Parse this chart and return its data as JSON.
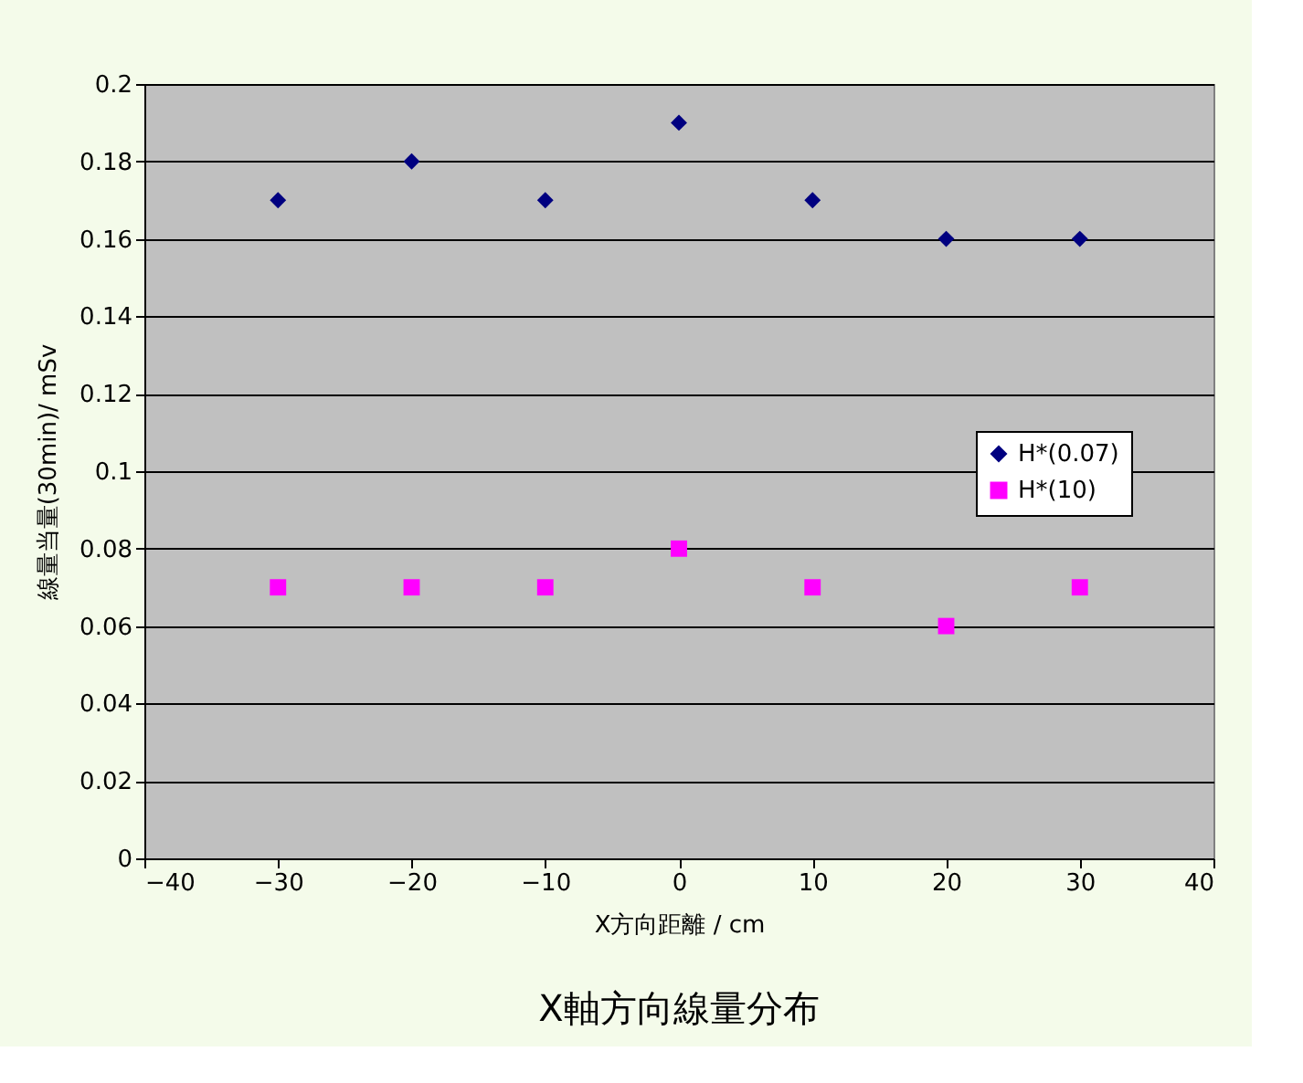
{
  "chart_data": {
    "type": "scatter",
    "title": "X軸方向線量分布",
    "xlabel": "X方向距離 / cm",
    "ylabel": "線量当量(30min)/ mSv",
    "x": [
      -30,
      -20,
      -10,
      0,
      10,
      20,
      30
    ],
    "series": [
      {
        "name": "H*(0.07)",
        "color": "#000080",
        "marker": "diamond",
        "values": [
          0.17,
          0.18,
          0.17,
          0.19,
          0.17,
          0.16,
          0.16
        ]
      },
      {
        "name": "H*(10)",
        "color": "#ff00ff",
        "marker": "square",
        "values": [
          0.07,
          0.07,
          0.07,
          0.08,
          0.07,
          0.06,
          0.07
        ]
      }
    ],
    "xlim": [
      -40,
      40
    ],
    "xticks": [
      -40,
      -30,
      -20,
      -10,
      0,
      10,
      20,
      30,
      40
    ],
    "ylim": [
      0,
      0.2
    ],
    "yticks": [
      0,
      0.02,
      0.04,
      0.06,
      0.08,
      0.1,
      0.12,
      0.14,
      0.16,
      0.18,
      0.2
    ],
    "grid": "y",
    "legend": "right"
  }
}
